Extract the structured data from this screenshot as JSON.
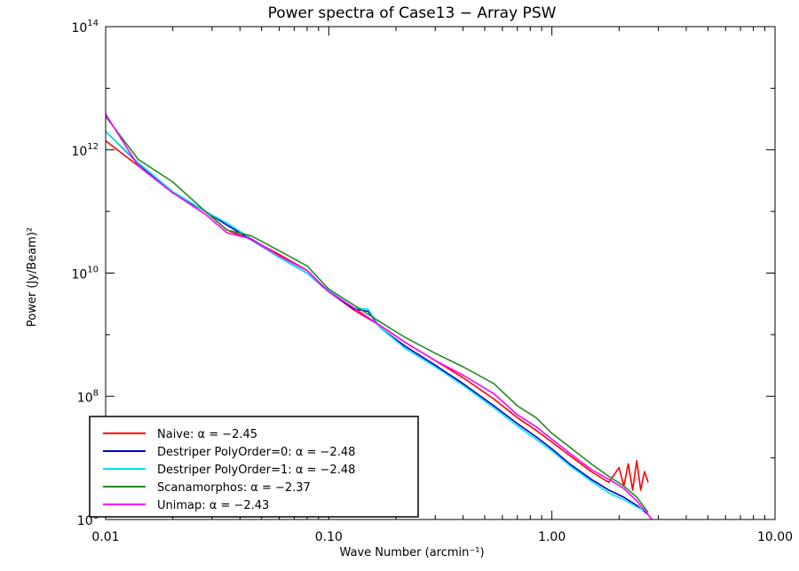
{
  "chart_data": {
    "type": "line",
    "title": "Power spectra of Case13 − Array PSW",
    "xlabel": "Wave Number (arcmin⁻¹)",
    "ylabel": "Power (Jy/Beam)²",
    "xscale": "log",
    "yscale": "log",
    "xlim": [
      0.01,
      10
    ],
    "ylim": [
      1000000,
      100000000000000
    ],
    "x_ticks": [
      {
        "value": 0.01,
        "label": "0.01"
      },
      {
        "value": 0.1,
        "label": "0.10"
      },
      {
        "value": 1,
        "label": "1.00"
      },
      {
        "value": 10,
        "label": "10.00"
      }
    ],
    "y_ticks": [
      {
        "value": 1000000,
        "base": "10",
        "exp": "6"
      },
      {
        "value": 100000000,
        "base": "10",
        "exp": "8"
      },
      {
        "value": 10000000000,
        "base": "10",
        "exp": "10"
      },
      {
        "value": 1000000000000,
        "base": "10",
        "exp": "12"
      },
      {
        "value": 100000000000000,
        "base": "10",
        "exp": "14"
      }
    ],
    "grid": false,
    "legend_position": "bottom-left",
    "series": [
      {
        "name": "Naive: α = −2.45",
        "color": "#ff0000",
        "x": [
          0.01,
          0.014,
          0.02,
          0.028,
          0.035,
          0.045,
          0.06,
          0.08,
          0.1,
          0.13,
          0.17,
          0.22,
          0.3,
          0.4,
          0.55,
          0.7,
          0.85,
          1.0,
          1.2,
          1.5,
          1.8,
          2.0,
          2.1,
          2.2,
          2.3,
          2.4,
          2.5,
          2.6,
          2.7
        ],
        "y": [
          1400000000000.0,
          550000000000.0,
          200000000000.0,
          100000000000.0,
          50000000000.0,
          35000000000.0,
          20000000000.0,
          11000000000.0,
          5000000000.0,
          2500000000.0,
          1400000000.0,
          750000000.0,
          380000000.0,
          200000000.0,
          90000000.0,
          45000000.0,
          28000000.0,
          18000000.0,
          11000000.0,
          6000000.0,
          4000000.0,
          7000000.0,
          3500000.0,
          8000000.0,
          3000000.0,
          9000000.0,
          3000000.0,
          6000000.0,
          4000000.0
        ]
      },
      {
        "name": "Destriper PolyOrder=0: α = −2.48",
        "color": "#0000cc",
        "x": [
          0.01,
          0.014,
          0.02,
          0.028,
          0.035,
          0.045,
          0.06,
          0.08,
          0.1,
          0.13,
          0.15,
          0.17,
          0.22,
          0.3,
          0.4,
          0.55,
          0.7,
          0.85,
          1.0,
          1.2,
          1.5,
          1.8,
          2.1,
          2.4,
          2.7
        ],
        "y": [
          2000000000000.0,
          600000000000.0,
          200000000000.0,
          100000000000.0,
          60000000000.0,
          35000000000.0,
          18000000000.0,
          10000000000.0,
          5000000000.0,
          2600000000.0,
          2400000000.0,
          1300000000.0,
          650000000.0,
          320000000.0,
          160000000.0,
          70000000.0,
          36000000.0,
          22000000.0,
          14000000.0,
          8000000.0,
          4500000.0,
          3000000.0,
          2300000.0,
          1700000.0,
          1200000.0
        ]
      },
      {
        "name": "Destriper PolyOrder=1: α = −2.48",
        "color": "#00e5ee",
        "x": [
          0.01,
          0.014,
          0.02,
          0.028,
          0.035,
          0.045,
          0.06,
          0.08,
          0.1,
          0.13,
          0.15,
          0.17,
          0.22,
          0.3,
          0.4,
          0.55,
          0.7,
          0.85,
          1.0,
          1.2,
          1.5,
          1.8,
          2.1,
          2.4,
          2.7
        ],
        "y": [
          2000000000000.0,
          620000000000.0,
          210000000000.0,
          100000000000.0,
          65000000000.0,
          36000000000.0,
          18000000000.0,
          10000000000.0,
          5200000000.0,
          2700000000.0,
          2600000000.0,
          1300000000.0,
          600000000.0,
          300000000.0,
          150000000.0,
          65000000.0,
          33000000.0,
          20000000.0,
          13000000.0,
          7500000.0,
          4200000.0,
          2700000.0,
          2100000.0,
          1600000.0,
          1300000.0
        ]
      },
      {
        "name": "Scanamorphos: α = −2.37",
        "color": "#228b22",
        "x": [
          0.01,
          0.014,
          0.02,
          0.028,
          0.035,
          0.045,
          0.06,
          0.08,
          0.1,
          0.13,
          0.17,
          0.22,
          0.3,
          0.4,
          0.55,
          0.7,
          0.85,
          1.0,
          1.2,
          1.5,
          1.8,
          2.1,
          2.4,
          2.7
        ],
        "y": [
          3500000000000.0,
          700000000000.0,
          300000000000.0,
          100000000000.0,
          50000000000.0,
          40000000000.0,
          23000000000.0,
          13000000000.0,
          5500000000.0,
          3000000000.0,
          1600000000.0,
          900000000.0,
          500000000.0,
          300000000.0,
          160000000.0,
          70000000.0,
          45000000.0,
          25000000.0,
          15000000.0,
          8000000.0,
          5000000.0,
          3500000.0,
          2300000.0,
          1300000.0
        ]
      },
      {
        "name": "Unimap: α = −2.43",
        "color": "#ff00ff",
        "x": [
          0.01,
          0.014,
          0.02,
          0.028,
          0.035,
          0.045,
          0.06,
          0.08,
          0.1,
          0.13,
          0.17,
          0.22,
          0.3,
          0.4,
          0.55,
          0.7,
          0.85,
          1.0,
          1.2,
          1.5,
          1.8,
          2.1,
          2.4,
          2.7,
          2.8
        ],
        "y": [
          3800000000000.0,
          550000000000.0,
          200000000000.0,
          90000000000.0,
          45000000000.0,
          36000000000.0,
          19000000000.0,
          11000000000.0,
          5000000000.0,
          2700000000.0,
          1400000000.0,
          750000000.0,
          380000000.0,
          220000000.0,
          110000000.0,
          50000000.0,
          32000000.0,
          20000000.0,
          12000000.0,
          6500000.0,
          4500000.0,
          3200000.0,
          2000000.0,
          1200000.0,
          1000000.0
        ]
      }
    ]
  }
}
